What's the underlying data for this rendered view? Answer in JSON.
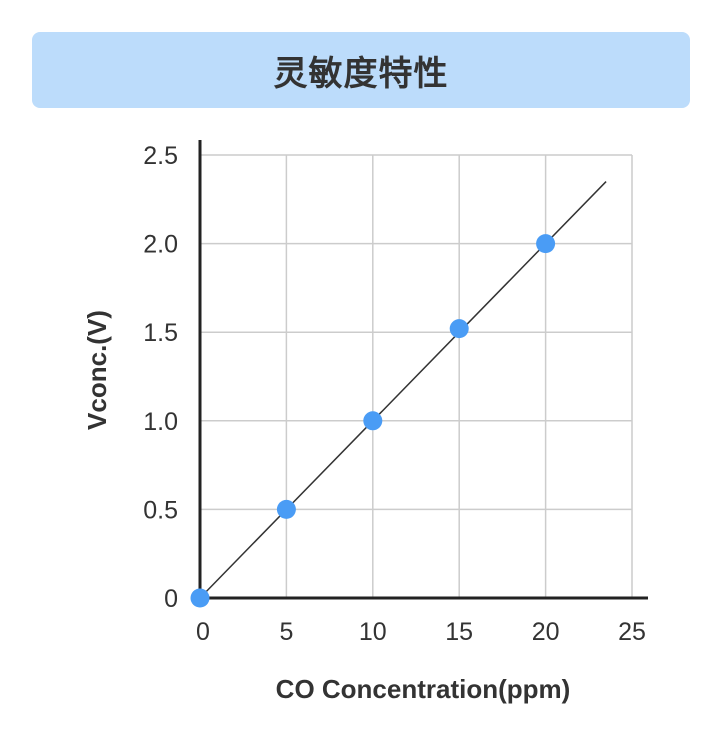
{
  "title": "灵敏度特性",
  "chart_data": {
    "type": "scatter",
    "title": "灵敏度特性",
    "xlabel": "CO Concentration(ppm)",
    "ylabel": "Vconc.(V)",
    "xlim": [
      0,
      25
    ],
    "ylim": [
      0,
      2.5
    ],
    "x_ticks": [
      0,
      5,
      10,
      15,
      20,
      25
    ],
    "x_tick_labels": [
      "0",
      "5",
      "10",
      "15",
      "20",
      "25"
    ],
    "y_ticks": [
      0,
      0.5,
      1.0,
      1.5,
      2.0,
      2.5
    ],
    "y_tick_labels": [
      "0",
      "0.5",
      "1.0",
      "1.5",
      "2.0",
      "2.5"
    ],
    "grid": true,
    "series": [
      {
        "points": [
          {
            "x": 0,
            "y": 0
          },
          {
            "x": 5,
            "y": 0.5
          },
          {
            "x": 10,
            "y": 1.0
          },
          {
            "x": 15,
            "y": 1.52
          },
          {
            "x": 20,
            "y": 2.0
          }
        ]
      }
    ],
    "trend_line": {
      "x0": 0,
      "y0": 0,
      "x1": 23.5,
      "y1": 2.35
    },
    "colors": {
      "point": "#4a9cf5",
      "line": "#333333",
      "grid": "#cccccc",
      "axis": "#222222",
      "title_bg": "#bcdcfb"
    }
  }
}
